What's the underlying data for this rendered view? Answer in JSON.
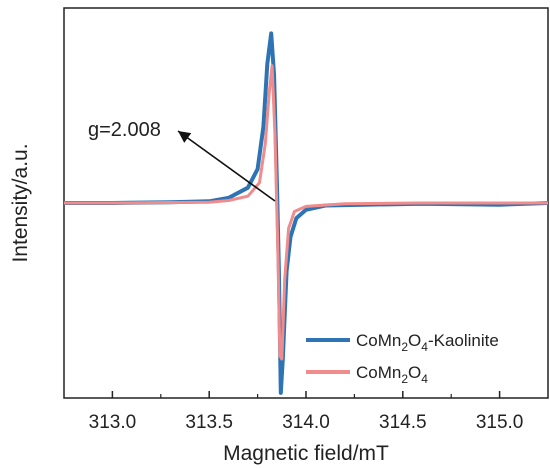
{
  "chart_data": {
    "type": "line",
    "xlabel": "Magnetic field/mT",
    "ylabel": "Intensity/a.u.",
    "xlim": [
      312.75,
      315.25
    ],
    "ylim": [
      -1.15,
      1.15
    ],
    "x_ticks": [
      313.0,
      313.5,
      314.0,
      314.5,
      315.0
    ],
    "x_tick_labels": [
      "313.0",
      "313.5",
      "314.0",
      "314.5",
      "315.0"
    ],
    "y_ticks_shown": false,
    "legend_position": "bottom-right",
    "annotation": {
      "text": "g=2.008",
      "arrow_to": [
        313.85,
        0.0
      ]
    },
    "series": [
      {
        "name": "CoMn2O4-Kaolinite",
        "legend_parts": [
          [
            "CoMn",
            "n"
          ],
          [
            "2",
            "s"
          ],
          [
            "O",
            "n"
          ],
          [
            "4",
            "s"
          ],
          [
            "-Kaolinite",
            "n"
          ]
        ],
        "color": "#2e74b5",
        "x": [
          312.75,
          313.0,
          313.3,
          313.5,
          313.6,
          313.7,
          313.75,
          313.78,
          313.8,
          313.82,
          313.835,
          313.85,
          313.86,
          313.87,
          313.88,
          313.9,
          313.92,
          313.95,
          314.0,
          314.1,
          314.3,
          314.6,
          315.0,
          315.25
        ],
        "y": [
          0.0,
          0.0,
          0.005,
          0.01,
          0.03,
          0.09,
          0.2,
          0.45,
          0.82,
          1.0,
          0.75,
          0.1,
          -0.4,
          -1.12,
          -0.92,
          -0.4,
          -0.2,
          -0.09,
          -0.04,
          -0.015,
          -0.01,
          -0.005,
          -0.01,
          0.0
        ]
      },
      {
        "name": "CoMn2O4",
        "legend_parts": [
          [
            "CoMn",
            "n"
          ],
          [
            "2",
            "s"
          ],
          [
            "O",
            "n"
          ],
          [
            "4",
            "s"
          ]
        ],
        "color": "#f08c8c",
        "x": [
          312.75,
          313.0,
          313.3,
          313.5,
          313.6,
          313.7,
          313.76,
          313.79,
          313.81,
          313.825,
          313.84,
          313.855,
          313.865,
          313.875,
          313.89,
          313.91,
          313.94,
          314.0,
          314.2,
          314.6,
          315.0,
          315.25
        ],
        "y": [
          0.0,
          0.0,
          0.003,
          0.005,
          0.015,
          0.04,
          0.12,
          0.35,
          0.65,
          0.81,
          0.4,
          -0.3,
          -0.9,
          -0.92,
          -0.45,
          -0.15,
          -0.05,
          -0.02,
          -0.005,
          0.0,
          0.0,
          0.0
        ]
      }
    ]
  }
}
